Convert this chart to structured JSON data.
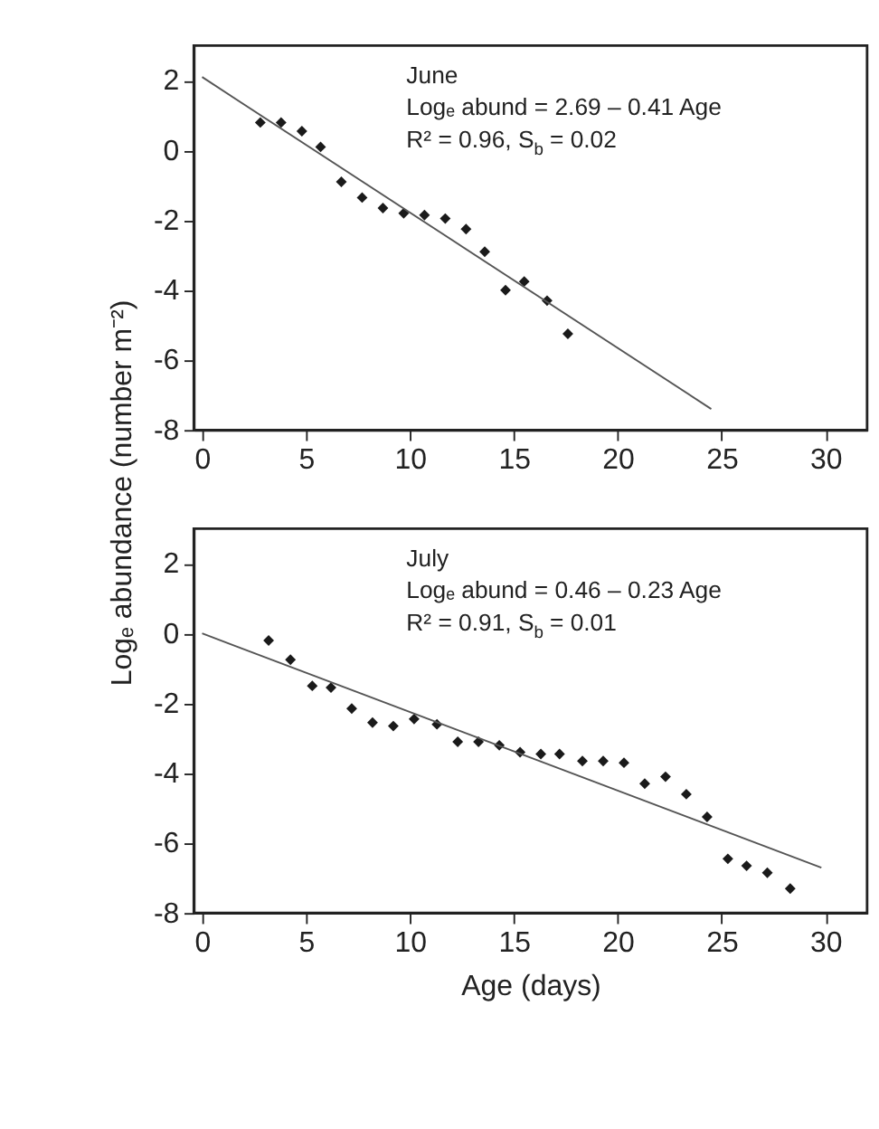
{
  "chart_data": [
    {
      "type": "scatter",
      "ylabel": "Logₑ abundance (number m⁻²)",
      "annotations": [
        "June",
        "Logₑ abund = 2.69 – 0.41 Age",
        "R² = 0.96, S$_{b}$ = 0.02"
      ],
      "xlim": [
        -0.4,
        32
      ],
      "ylim": [
        -8,
        3
      ],
      "xticks": [
        0,
        5,
        10,
        15,
        20,
        25,
        30
      ],
      "yticks": [
        -8,
        -6,
        -4,
        -2,
        0,
        2
      ],
      "series": [
        {
          "color": "#1a1a1a",
          "marker": "diamond",
          "x": [
            2.8,
            3.8,
            4.8,
            5.7,
            6.7,
            7.7,
            8.7,
            9.7,
            10.7,
            11.7,
            12.7,
            13.6,
            14.6,
            15.5,
            16.6,
            17.6
          ],
          "values": [
            0.8,
            0.8,
            0.55,
            0.1,
            -0.9,
            -1.35,
            -1.65,
            -1.8,
            -1.85,
            -1.95,
            -2.25,
            -2.9,
            -4.0,
            -3.75,
            -4.3,
            -5.25
          ]
        },
        {
          "type": "line",
          "color": "#555555",
          "x": [
            0,
            24.5
          ],
          "values": [
            2.1,
            -7.4
          ]
        }
      ]
    },
    {
      "type": "scatter",
      "xlabel": "Age (days)",
      "annotations": [
        "July",
        "Logₑ abund = 0.46 – 0.23 Age",
        "R² = 0.91, S$_{b}$ = 0.01"
      ],
      "xlim": [
        -0.4,
        32
      ],
      "ylim": [
        -8,
        3
      ],
      "xticks": [
        0,
        5,
        10,
        15,
        20,
        25,
        30
      ],
      "yticks": [
        -8,
        -6,
        -4,
        -2,
        0,
        2
      ],
      "series": [
        {
          "color": "#1a1a1a",
          "marker": "diamond",
          "x": [
            3.2,
            4.25,
            5.3,
            6.2,
            7.2,
            8.2,
            9.2,
            10.2,
            11.3,
            12.3,
            13.3,
            14.3,
            15.3,
            16.3,
            17.2,
            18.3,
            19.3,
            20.3,
            21.3,
            22.3,
            23.3,
            24.3,
            25.3,
            26.2,
            27.2,
            28.3
          ],
          "values": [
            -0.2,
            -0.75,
            -1.5,
            -1.55,
            -2.15,
            -2.55,
            -2.65,
            -2.45,
            -2.6,
            -3.1,
            -3.1,
            -3.2,
            -3.4,
            -3.45,
            -3.45,
            -3.65,
            -3.65,
            -3.7,
            -4.3,
            -4.1,
            -4.6,
            -5.25,
            -6.45,
            -6.65,
            -6.85,
            -7.3
          ]
        },
        {
          "type": "line",
          "color": "#555555",
          "x": [
            0,
            29.8
          ],
          "values": [
            0,
            -6.7
          ]
        }
      ]
    }
  ]
}
